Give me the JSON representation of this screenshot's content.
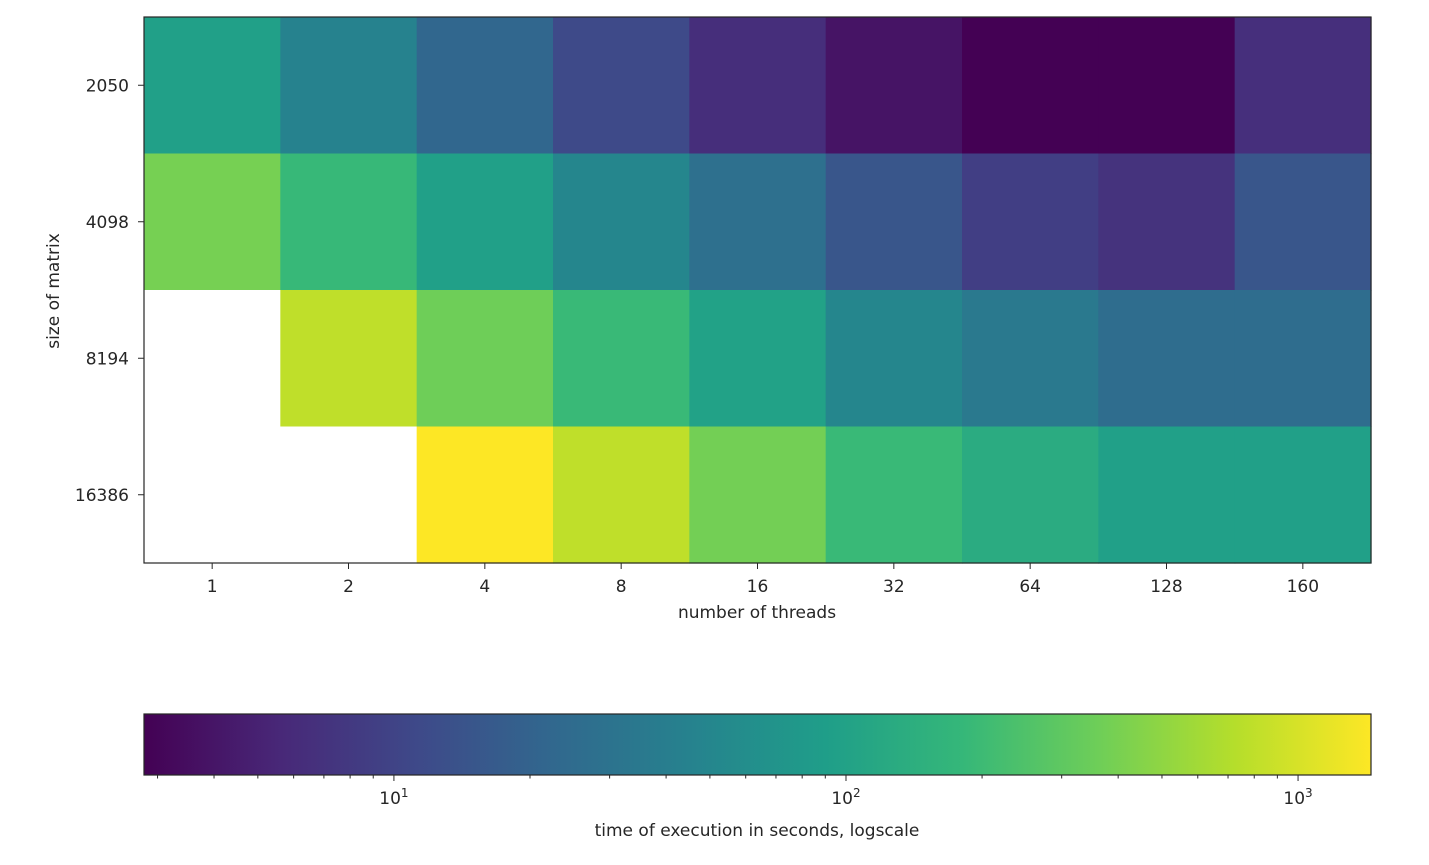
{
  "chart_data": {
    "type": "heatmap",
    "xlabel": "number of threads",
    "ylabel": "size of matrix",
    "x_categories": [
      "1",
      "2",
      "4",
      "8",
      "16",
      "32",
      "64",
      "128",
      "160"
    ],
    "y_categories": [
      "2050",
      "4098",
      "8194",
      "16386"
    ],
    "values": [
      [
        95,
        45,
        22,
        11.5,
        6.3,
        3.9,
        2.8,
        2.8,
        6.5
      ],
      [
        390,
        185,
        95,
        50,
        28,
        15,
        9.0,
        7.0,
        15
      ],
      [
        null,
        800,
        360,
        190,
        100,
        50,
        35,
        26,
        26
      ],
      [
        null,
        null,
        1450,
        800,
        380,
        190,
        130,
        95,
        95
      ]
    ],
    "colorscale": "viridis",
    "colorbar": {
      "orientation": "horizontal",
      "scale": "log",
      "range": [
        2.8,
        1450
      ],
      "label": "time of execution in seconds, logscale",
      "ticks": [
        {
          "base": "10",
          "exp": "1",
          "value": 10
        },
        {
          "base": "10",
          "exp": "2",
          "value": 100
        },
        {
          "base": "10",
          "exp": "3",
          "value": 1000
        }
      ]
    }
  },
  "colors": {
    "viridis": [
      "#440154",
      "#482878",
      "#3e4989",
      "#31688e",
      "#26828e",
      "#1f9e89",
      "#35b779",
      "#6ece58",
      "#b5de2b",
      "#fde725"
    ],
    "missing": "#ffffff",
    "axis": "#262626"
  }
}
